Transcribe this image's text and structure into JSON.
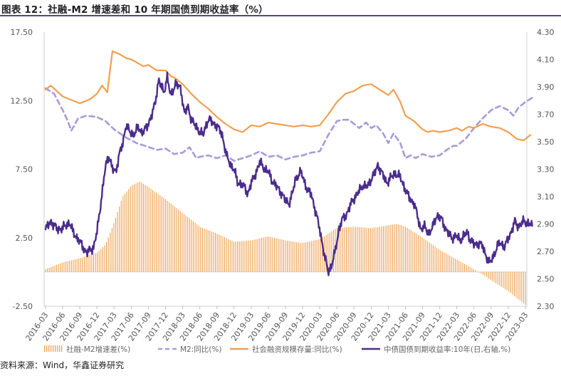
{
  "header": {
    "title": "图表 12：社融-M2 增速差和 10 年期国债到期收益率（%）"
  },
  "footer": {
    "source": "资料来源：Wind，华鑫证券研究"
  },
  "colors": {
    "accent": "#5a3fa0",
    "bars": "#f0a050",
    "m2": "#a99ad6",
    "tsf": "#f0a050",
    "bond": "#4b2d8c"
  },
  "chart_data": {
    "type": "bar+line",
    "x": [
      "2016-03",
      "2016-06",
      "2016-09",
      "2016-12",
      "2017-03",
      "2017-06",
      "2017-09",
      "2017-12",
      "2018-03",
      "2018-06",
      "2018-09",
      "2018-12",
      "2019-03",
      "2019-06",
      "2019-09",
      "2019-12",
      "2020-03",
      "2020-06",
      "2020-09",
      "2020-12",
      "2021-03",
      "2021-06",
      "2021-09",
      "2021-12",
      "2022-03",
      "2022-06",
      "2022-09",
      "2022-12",
      "2023-03"
    ],
    "left_axis": {
      "ylim": [
        -2.5,
        17.5
      ],
      "ticks": [
        "17.50",
        "12.50",
        "7.50",
        "2.50",
        "-2.50"
      ],
      "tick_values": [
        17.5,
        12.5,
        7.5,
        2.5,
        -2.5
      ]
    },
    "right_axis": {
      "ylim": [
        2.3,
        4.3
      ],
      "ticks": [
        "4.30",
        "4.10",
        "3.90",
        "3.70",
        "3.50",
        "3.30",
        "3.10",
        "2.90",
        "2.70",
        "2.50",
        "2.30"
      ],
      "tick_values": [
        4.3,
        4.1,
        3.9,
        3.7,
        3.5,
        3.3,
        3.1,
        2.9,
        2.7,
        2.5,
        2.3
      ]
    },
    "series": [
      {
        "name": "社融-M2增速差(%)",
        "type": "bar",
        "axis": "left",
        "keypoints": [
          [
            0,
            0.2
          ],
          [
            1,
            0.7
          ],
          [
            2,
            1.0
          ],
          [
            3,
            1.4
          ],
          [
            3.5,
            2.0
          ],
          [
            4,
            3.6
          ],
          [
            4.5,
            5.5
          ],
          [
            5,
            6.3
          ],
          [
            5.5,
            6.6
          ],
          [
            6,
            6.2
          ],
          [
            7,
            5.3
          ],
          [
            8,
            4.3
          ],
          [
            9,
            3.3
          ],
          [
            10,
            2.8
          ],
          [
            11,
            2.2
          ],
          [
            12,
            2.3
          ],
          [
            13,
            2.6
          ],
          [
            14,
            2.3
          ],
          [
            15,
            2.1
          ],
          [
            16,
            2.4
          ],
          [
            17,
            3.2
          ],
          [
            18,
            3.3
          ],
          [
            19,
            3.2
          ],
          [
            20,
            3.4
          ],
          [
            20.5,
            3.5
          ],
          [
            21,
            3.3
          ],
          [
            22,
            2.5
          ],
          [
            23,
            1.6
          ],
          [
            24,
            0.9
          ],
          [
            25,
            0.2
          ],
          [
            26,
            -0.6
          ],
          [
            27,
            -1.4
          ],
          [
            28,
            -2.4
          ]
        ]
      },
      {
        "name": "M2:同比(%)",
        "type": "line",
        "axis": "left",
        "dashed": true,
        "keypoints": [
          [
            0,
            13.4
          ],
          [
            0.5,
            13.0
          ],
          [
            1,
            11.8
          ],
          [
            1.3,
            11.0
          ],
          [
            1.5,
            10.3
          ],
          [
            1.9,
            11.2
          ],
          [
            2.4,
            11.4
          ],
          [
            3,
            11.3
          ],
          [
            3.5,
            11.0
          ],
          [
            4,
            10.4
          ],
          [
            4.7,
            9.8
          ],
          [
            5.3,
            9.4
          ],
          [
            5.8,
            9.2
          ],
          [
            6.5,
            8.9
          ],
          [
            7,
            9.0
          ],
          [
            7.5,
            8.6
          ],
          [
            8,
            8.7
          ],
          [
            8.4,
            9.1
          ],
          [
            8.8,
            8.3
          ],
          [
            9,
            8.4
          ],
          [
            9.5,
            8.5
          ],
          [
            10,
            8.3
          ],
          [
            10.5,
            8.5
          ],
          [
            11,
            8.1
          ],
          [
            11.5,
            8.3
          ],
          [
            12,
            8.5
          ],
          [
            12.5,
            8.8
          ],
          [
            13,
            8.4
          ],
          [
            13.5,
            8.5
          ],
          [
            14,
            8.2
          ],
          [
            14.5,
            8.4
          ],
          [
            15,
            8.5
          ],
          [
            15.5,
            8.7
          ],
          [
            16,
            8.8
          ],
          [
            16.5,
            10.0
          ],
          [
            17,
            11.0
          ],
          [
            17.3,
            11.1
          ],
          [
            17.7,
            11.1
          ],
          [
            18,
            10.8
          ],
          [
            18.3,
            10.5
          ],
          [
            18.7,
            10.9
          ],
          [
            19,
            10.5
          ],
          [
            19.3,
            10.7
          ],
          [
            19.7,
            10.1
          ],
          [
            20,
            9.4
          ],
          [
            20.3,
            10.1
          ],
          [
            20.7,
            9.4
          ],
          [
            21,
            8.3
          ],
          [
            21.3,
            8.5
          ],
          [
            21.6,
            8.3
          ],
          [
            22,
            8.6
          ],
          [
            22.5,
            8.4
          ],
          [
            23,
            8.5
          ],
          [
            23.4,
            8.9
          ],
          [
            23.8,
            9.2
          ],
          [
            24,
            9.2
          ],
          [
            24.5,
            9.7
          ],
          [
            25,
            10.5
          ],
          [
            25.5,
            11.2
          ],
          [
            26,
            11.8
          ],
          [
            26.5,
            12.1
          ],
          [
            27,
            11.8
          ],
          [
            27.3,
            11.4
          ],
          [
            27.6,
            12.0
          ],
          [
            28,
            12.4
          ],
          [
            28.4,
            12.7
          ]
        ]
      },
      {
        "name": "社会融资规模存量:同比(%)",
        "type": "line",
        "axis": "left",
        "keypoints": [
          [
            0,
            13.3
          ],
          [
            0.3,
            13.6
          ],
          [
            1,
            12.8
          ],
          [
            2,
            12.3
          ],
          [
            2.6,
            12.6
          ],
          [
            3,
            13.0
          ],
          [
            3.3,
            13.6
          ],
          [
            3.6,
            13.1
          ],
          [
            3.9,
            16.1
          ],
          [
            4.3,
            15.9
          ],
          [
            4.7,
            15.6
          ],
          [
            5,
            15.5
          ],
          [
            5.3,
            15.3
          ],
          [
            5.7,
            15.0
          ],
          [
            6,
            15.1
          ],
          [
            6.5,
            14.7
          ],
          [
            7,
            14.7
          ],
          [
            7.3,
            14.3
          ],
          [
            7.6,
            14.1
          ],
          [
            8,
            13.7
          ],
          [
            8.5,
            13.0
          ],
          [
            9,
            12.4
          ],
          [
            9.5,
            11.9
          ],
          [
            10,
            11.3
          ],
          [
            10.5,
            10.8
          ],
          [
            11,
            10.4
          ],
          [
            11.5,
            10.2
          ],
          [
            12,
            10.7
          ],
          [
            12.5,
            10.6
          ],
          [
            13,
            10.9
          ],
          [
            13.5,
            10.8
          ],
          [
            14,
            10.7
          ],
          [
            14.5,
            10.6
          ],
          [
            15,
            10.7
          ],
          [
            15.5,
            10.6
          ],
          [
            16,
            10.7
          ],
          [
            16.5,
            11.5
          ],
          [
            17,
            12.4
          ],
          [
            17.5,
            13.0
          ],
          [
            18,
            13.2
          ],
          [
            18.5,
            13.6
          ],
          [
            19,
            13.7
          ],
          [
            19.5,
            13.3
          ],
          [
            20,
            12.9
          ],
          [
            20.3,
            13.3
          ],
          [
            20.7,
            12.4
          ],
          [
            21,
            11.4
          ],
          [
            21.5,
            11.0
          ],
          [
            22,
            10.4
          ],
          [
            22.3,
            10.2
          ],
          [
            22.6,
            10.3
          ],
          [
            23,
            10.2
          ],
          [
            23.5,
            10.3
          ],
          [
            24,
            10.5
          ],
          [
            24.3,
            10.3
          ],
          [
            24.7,
            10.6
          ],
          [
            25,
            10.5
          ],
          [
            25.5,
            10.8
          ],
          [
            26,
            10.6
          ],
          [
            26.5,
            10.5
          ],
          [
            27,
            10.2
          ],
          [
            27.5,
            9.7
          ],
          [
            27.9,
            9.6
          ],
          [
            28.3,
            10.0
          ]
        ]
      },
      {
        "name": "中债国债到期收益率:10年(日,右轴,%)",
        "type": "line",
        "axis": "right",
        "keypoints": [
          [
            0,
            2.86
          ],
          [
            0.3,
            2.92
          ],
          [
            0.7,
            2.86
          ],
          [
            1,
            2.87
          ],
          [
            1.4,
            2.91
          ],
          [
            1.6,
            2.84
          ],
          [
            2,
            2.77
          ],
          [
            2.4,
            2.69
          ],
          [
            2.8,
            2.73
          ],
          [
            3,
            2.84
          ],
          [
            3.2,
            3.03
          ],
          [
            3.5,
            3.32
          ],
          [
            3.7,
            3.4
          ],
          [
            3.9,
            3.3
          ],
          [
            4.1,
            3.28
          ],
          [
            4.3,
            3.41
          ],
          [
            4.5,
            3.48
          ],
          [
            4.7,
            3.63
          ],
          [
            4.9,
            3.57
          ],
          [
            5.1,
            3.55
          ],
          [
            5.4,
            3.6
          ],
          [
            5.6,
            3.57
          ],
          [
            5.9,
            3.6
          ],
          [
            6.2,
            3.7
          ],
          [
            6.4,
            3.78
          ],
          [
            6.6,
            3.96
          ],
          [
            6.9,
            3.85
          ],
          [
            7.1,
            3.98
          ],
          [
            7.3,
            3.83
          ],
          [
            7.6,
            3.93
          ],
          [
            7.9,
            3.88
          ],
          [
            8.1,
            3.71
          ],
          [
            8.3,
            3.75
          ],
          [
            8.5,
            3.67
          ],
          [
            8.8,
            3.6
          ],
          [
            9.2,
            3.55
          ],
          [
            9.5,
            3.67
          ],
          [
            9.8,
            3.63
          ],
          [
            10,
            3.62
          ],
          [
            10.3,
            3.55
          ],
          [
            10.6,
            3.38
          ],
          [
            10.8,
            3.33
          ],
          [
            11,
            3.3
          ],
          [
            11.2,
            3.2
          ],
          [
            11.5,
            3.19
          ],
          [
            11.8,
            3.12
          ],
          [
            12,
            3.2
          ],
          [
            12.2,
            3.25
          ],
          [
            12.5,
            3.35
          ],
          [
            12.8,
            3.3
          ],
          [
            13,
            3.28
          ],
          [
            13.2,
            3.22
          ],
          [
            13.5,
            3.17
          ],
          [
            13.8,
            3.12
          ],
          [
            14,
            3.07
          ],
          [
            14.2,
            3.05
          ],
          [
            14.4,
            3.12
          ],
          [
            14.6,
            3.23
          ],
          [
            14.9,
            3.28
          ],
          [
            15.1,
            3.21
          ],
          [
            15.3,
            3.14
          ],
          [
            15.5,
            3.12
          ],
          [
            15.7,
            3.02
          ],
          [
            16,
            2.86
          ],
          [
            16.3,
            2.65
          ],
          [
            16.5,
            2.55
          ],
          [
            16.7,
            2.6
          ],
          [
            16.9,
            2.7
          ],
          [
            17.1,
            2.85
          ],
          [
            17.3,
            2.93
          ],
          [
            17.6,
            2.98
          ],
          [
            17.9,
            3.07
          ],
          [
            18.2,
            3.12
          ],
          [
            18.5,
            3.18
          ],
          [
            18.8,
            3.17
          ],
          [
            19,
            3.23
          ],
          [
            19.2,
            3.27
          ],
          [
            19.4,
            3.33
          ],
          [
            19.6,
            3.28
          ],
          [
            19.9,
            3.2
          ],
          [
            20.1,
            3.23
          ],
          [
            20.4,
            3.27
          ],
          [
            20.7,
            3.24
          ],
          [
            20.9,
            3.18
          ],
          [
            21.1,
            3.12
          ],
          [
            21.3,
            3.08
          ],
          [
            21.5,
            3.05
          ],
          [
            21.7,
            2.96
          ],
          [
            21.9,
            2.86
          ],
          [
            22.1,
            2.88
          ],
          [
            22.4,
            2.83
          ],
          [
            22.6,
            2.88
          ],
          [
            22.8,
            2.96
          ],
          [
            23.1,
            2.94
          ],
          [
            23.4,
            2.85
          ],
          [
            23.7,
            2.8
          ],
          [
            24,
            2.81
          ],
          [
            24.2,
            2.78
          ],
          [
            24.4,
            2.81
          ],
          [
            24.6,
            2.84
          ],
          [
            24.8,
            2.78
          ],
          [
            25,
            2.75
          ],
          [
            25.3,
            2.76
          ],
          [
            25.5,
            2.74
          ],
          [
            25.7,
            2.67
          ],
          [
            25.9,
            2.61
          ],
          [
            26.1,
            2.66
          ],
          [
            26.3,
            2.71
          ],
          [
            26.5,
            2.77
          ],
          [
            26.8,
            2.73
          ],
          [
            27,
            2.8
          ],
          [
            27.2,
            2.85
          ],
          [
            27.4,
            2.92
          ],
          [
            27.6,
            2.88
          ],
          [
            27.9,
            2.92
          ],
          [
            28.2,
            2.9
          ],
          [
            28.4,
            2.89
          ]
        ]
      }
    ],
    "legend": [
      {
        "label": "社融-M2增速差(%)",
        "style": "bar"
      },
      {
        "label": "M2:同比(%)",
        "style": "dashed"
      },
      {
        "label": "社会融资规模存量:同比(%)",
        "style": "line"
      },
      {
        "label": "中债国债到期收益率:10年(日,右轴,%)",
        "style": "line"
      }
    ],
    "legend_position": "bottom"
  }
}
